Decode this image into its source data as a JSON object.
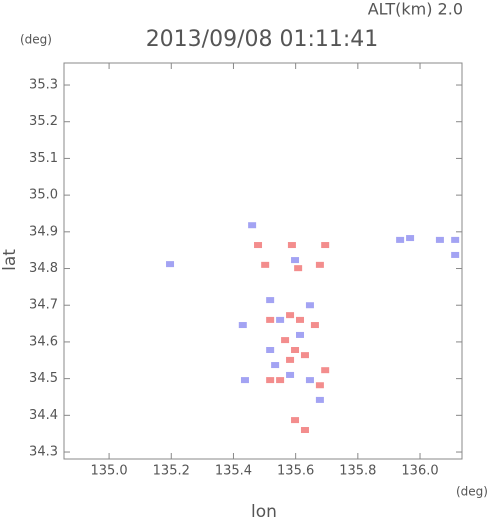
{
  "chart_data": {
    "type": "scatter",
    "title": "2013/09/08 01:11:41",
    "subtitle": "ALT(km) 2.0",
    "y_unit": "(deg)",
    "x_unit": "(deg)",
    "x_label": "lon",
    "y_label": "lat",
    "xlim": [
      134.855,
      136.135
    ],
    "ylim": [
      34.281,
      35.36
    ],
    "xticks": [
      {
        "value": 135,
        "label": "135.0"
      },
      135.2,
      135.4,
      135.6,
      135.8,
      {
        "value": 136,
        "label": "136.0"
      }
    ],
    "yticks": [
      34.3,
      34.4,
      34.5,
      34.6,
      34.7,
      34.8,
      34.9,
      {
        "value": 35,
        "label": "35.0"
      },
      35.1,
      35.2,
      35.3
    ],
    "series": [
      {
        "color": "#8c8cf0",
        "x": [
          135.196,
          135.46,
          135.936,
          135.968,
          136.064,
          136.113,
          136.113,
          135.43,
          135.518,
          135.55,
          135.614,
          135.646,
          135.518,
          135.582,
          135.646,
          135.678,
          135.598,
          135.534,
          135.437
        ],
        "y": [
          34.812,
          34.918,
          34.878,
          34.883,
          34.878,
          34.878,
          34.837,
          34.646,
          34.714,
          34.66,
          34.619,
          34.7,
          34.578,
          34.51,
          34.496,
          34.442,
          34.823,
          34.537,
          34.496
        ]
      },
      {
        "color": "#f07070",
        "x": [
          135.479,
          135.502,
          135.588,
          135.608,
          135.678,
          135.695,
          135.518,
          135.582,
          135.614,
          135.566,
          135.598,
          135.662,
          135.582,
          135.63,
          135.55,
          135.678,
          135.695,
          135.598,
          135.63,
          135.518
        ],
        "y": [
          34.864,
          34.81,
          34.864,
          34.801,
          34.81,
          34.864,
          34.66,
          34.673,
          34.66,
          34.605,
          34.578,
          34.646,
          34.551,
          34.564,
          34.496,
          34.482,
          34.523,
          34.387,
          34.36,
          34.496
        ]
      }
    ]
  }
}
